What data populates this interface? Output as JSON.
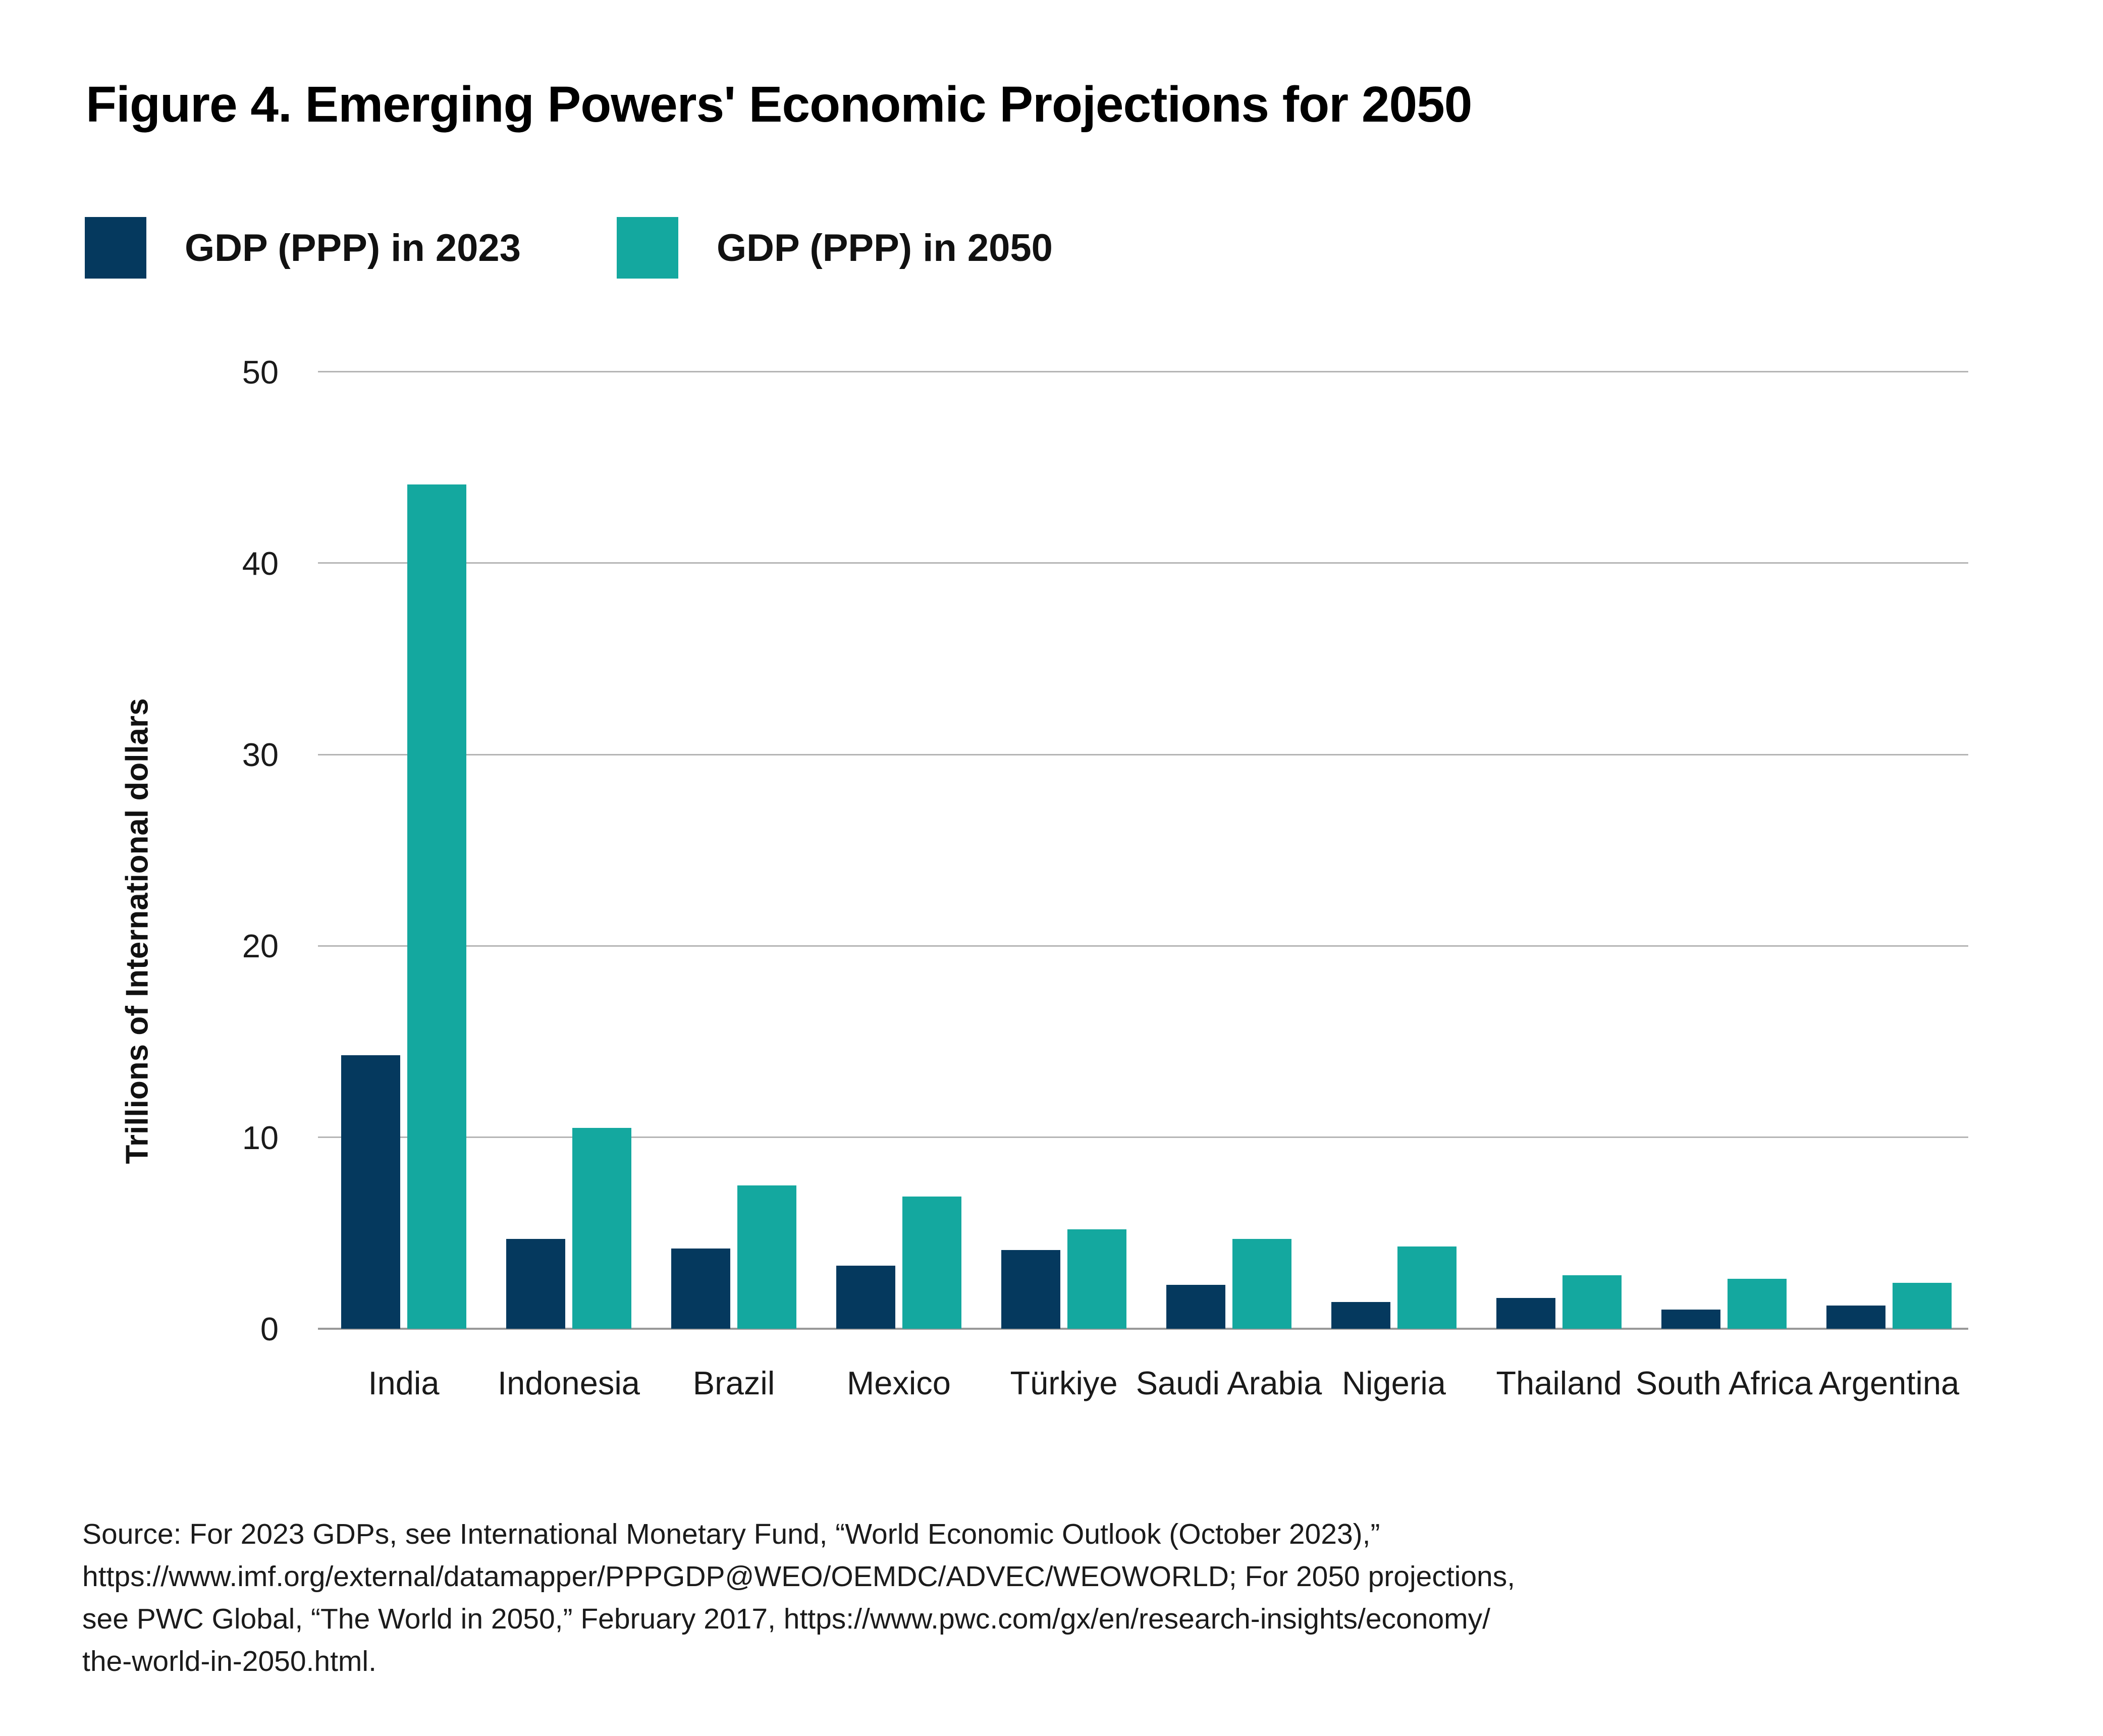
{
  "title": "Figure 4. Emerging Powers' Economic Projections for 2050",
  "colors": {
    "navy": "#05395e",
    "teal": "#14a89f",
    "gridline": "#b5b5b5",
    "baseline": "#999999",
    "text": "#1a1a1a"
  },
  "legend": {
    "items": [
      {
        "label": "GDP (PPP) in 2023",
        "color": "#05395e"
      },
      {
        "label": "GDP (PPP) in 2050",
        "color": "#14a89f"
      }
    ]
  },
  "chart_data": {
    "type": "bar",
    "title": "Figure 4. Emerging Powers' Economic Projections for 2050",
    "categories": [
      "India",
      "Indonesia",
      "Brazil",
      "Mexico",
      "Türkiye",
      "Saudi Arabia",
      "Nigeria",
      "Thailand",
      "South Africa",
      "Argentina"
    ],
    "series": [
      {
        "name": "GDP (PPP) in 2023",
        "color": "#05395e",
        "values": [
          14.3,
          4.7,
          4.2,
          3.3,
          4.1,
          2.3,
          1.4,
          1.6,
          1.0,
          1.2
        ]
      },
      {
        "name": "GDP (PPP) in 2050",
        "color": "#14a89f",
        "values": [
          44.1,
          10.5,
          7.5,
          6.9,
          5.2,
          4.7,
          4.3,
          2.8,
          2.6,
          2.4
        ]
      }
    ],
    "xlabel": "",
    "ylabel": "Trillions of International dollars",
    "ylim": [
      0,
      50
    ],
    "yticks": [
      0,
      10,
      20,
      30,
      40,
      50
    ],
    "grid": true,
    "legend_position": "top-left"
  },
  "source_note": {
    "lines": [
      "Source: For 2023 GDPs, see International Monetary Fund, “World Economic Outlook (October 2023),”",
      "https://www.imf.org/external/datamapper/PPPGDP@WEO/OEMDC/ADVEC/WEOWORLD; For 2050 projections,",
      "see PWC Global, “The World in 2050,” February 2017, https://www.pwc.com/gx/en/research-insights/economy/",
      "the-world-in-2050.html."
    ]
  }
}
